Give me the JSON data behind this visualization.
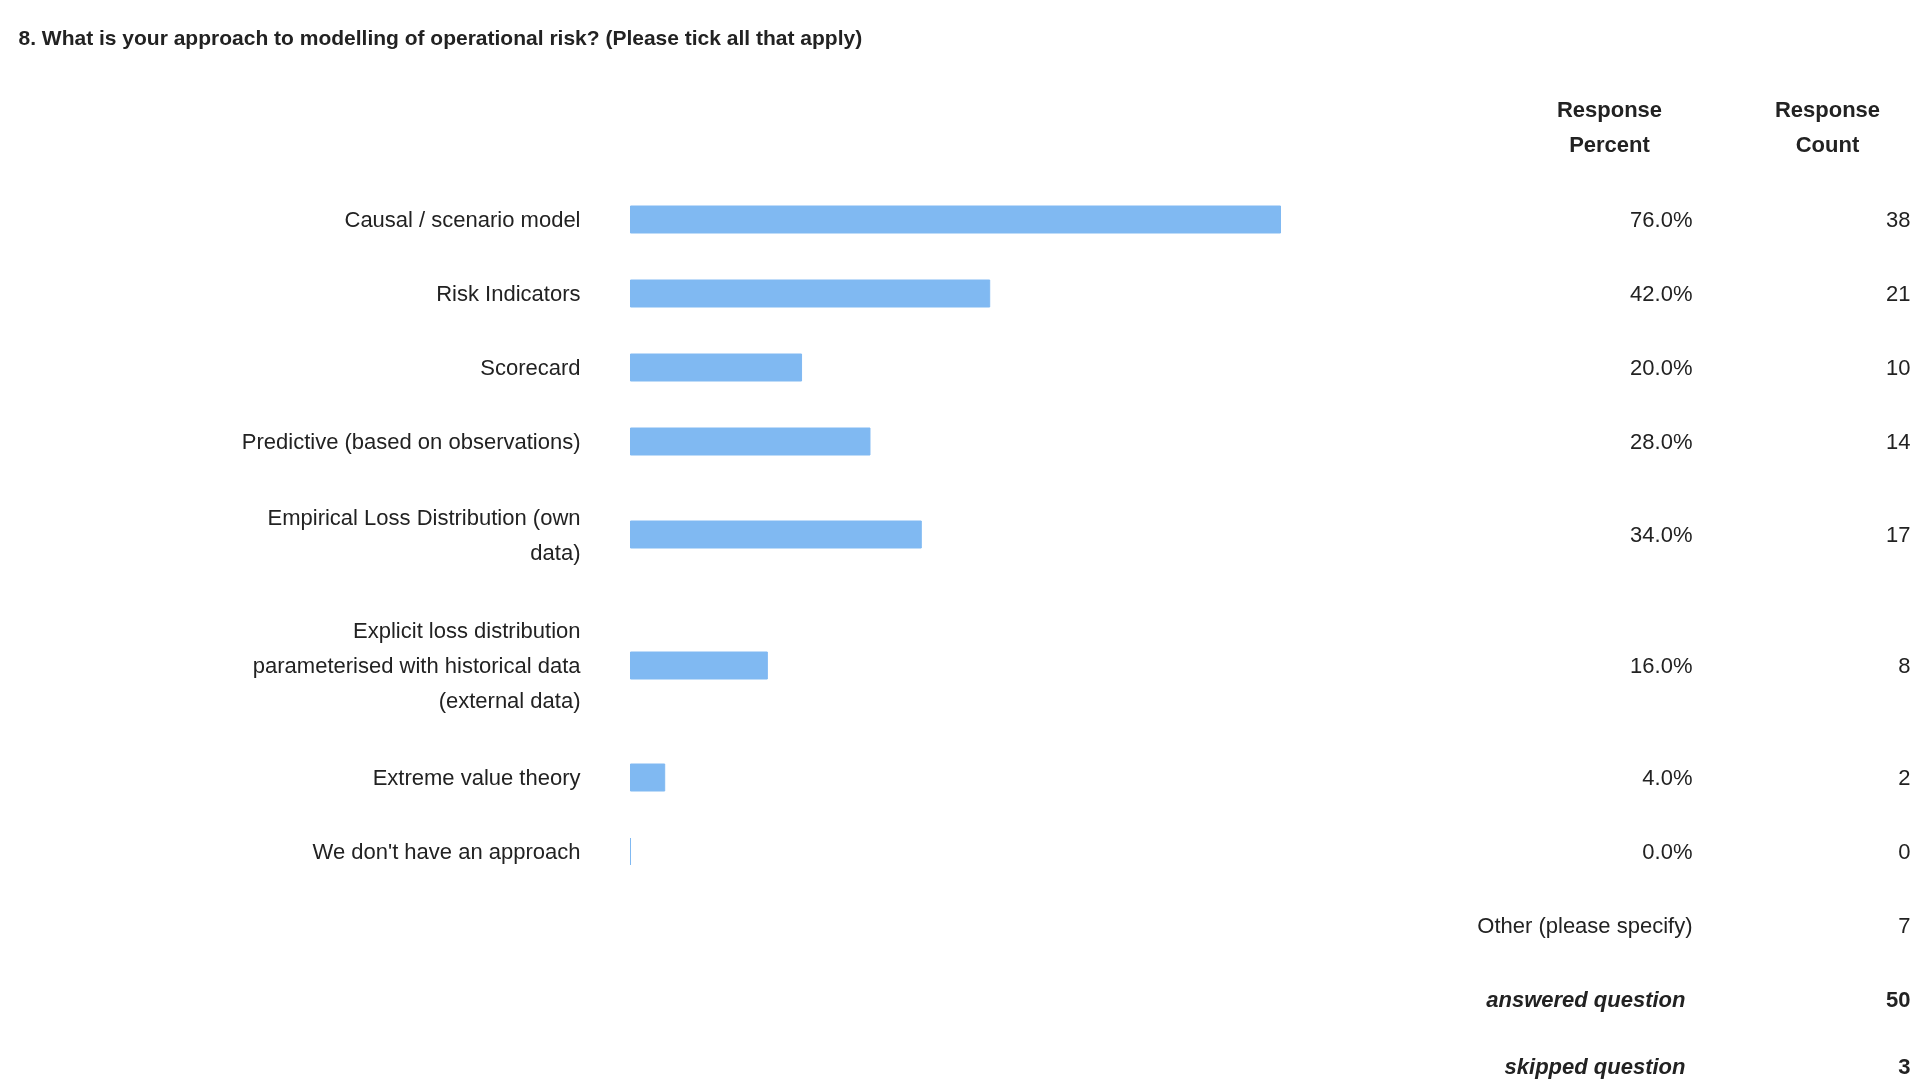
{
  "chart_data": {
    "type": "bar",
    "orientation": "horizontal",
    "title": "8. What is your approach to modelling of operational risk? (Please tick all that apply)",
    "categories": [
      "Causal / scenario model",
      "Risk Indicators",
      "Scorecard",
      "Predictive (based on observations)",
      "Empirical Loss Distribution (own data)",
      "Explicit loss distribution parameterised with historical data (external data)",
      "Extreme value theory",
      "We don't have an approach"
    ],
    "values": [
      76.0,
      42.0,
      20.0,
      28.0,
      34.0,
      16.0,
      4.0,
      0.0
    ],
    "value_labels": [
      "76.0%",
      "42.0%",
      "20.0%",
      "28.0%",
      "34.0%",
      "16.0%",
      "4.0%",
      "0.0%"
    ],
    "color": "#80b9f2",
    "annotations": [
      "Response Percent",
      "Response Count",
      "38",
      "21",
      "10",
      "14",
      "17",
      "8",
      "2",
      "0",
      "Other (please specify)",
      "7",
      "answered question",
      "50",
      "skipped question",
      "3"
    ]
  }
}
